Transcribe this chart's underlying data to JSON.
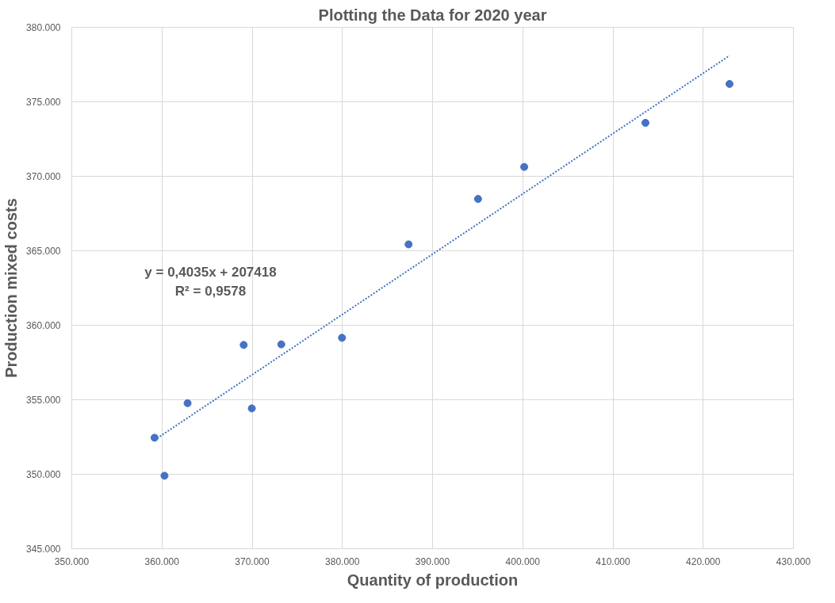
{
  "chart_data": {
    "type": "scatter",
    "title": "Plotting the Data for 2020 year",
    "xlabel": "Quantity of production",
    "ylabel": "Production mixed costs",
    "annotations": [
      "y = 0,4035x + 207418",
      "R² = 0,9578"
    ],
    "x": [
      359180,
      360280,
      362840,
      369060,
      369960,
      373230,
      379960,
      387340,
      395040,
      400160,
      413600,
      422920
    ],
    "series": [
      {
        "color": "#4472c4",
        "marker": "circle",
        "values": [
          352450,
          349900,
          354770,
          358680,
          354420,
          358720,
          359160,
          365430,
          368480,
          370630,
          373590,
          376200
        ]
      },
      {
        "type": "line",
        "color": "#4472c4",
        "line_style": "dotted",
        "marker": "none",
        "x": [
          359180,
          422920
        ],
        "values": [
          352300,
          378100
        ]
      }
    ],
    "xlim": [
      350000,
      430000
    ],
    "ylim": [
      345000,
      380000
    ],
    "xticks": [
      {
        "value": 350000,
        "label": "350.000"
      },
      {
        "value": 360000,
        "label": "360.000"
      },
      {
        "value": 370000,
        "label": "370.000"
      },
      {
        "value": 380000,
        "label": "380.000"
      },
      {
        "value": 390000,
        "label": "390.000"
      },
      {
        "value": 400000,
        "label": "400.000"
      },
      {
        "value": 410000,
        "label": "410.000"
      },
      {
        "value": 420000,
        "label": "420.000"
      },
      {
        "value": 430000,
        "label": "430.000"
      }
    ],
    "yticks": [
      {
        "value": 345000,
        "label": "345.000"
      },
      {
        "value": 350000,
        "label": "350.000"
      },
      {
        "value": 355000,
        "label": "355.000"
      },
      {
        "value": 360000,
        "label": "360.000"
      },
      {
        "value": 365000,
        "label": "365.000"
      },
      {
        "value": 370000,
        "label": "370.000"
      },
      {
        "value": 375000,
        "label": "375.000"
      },
      {
        "value": 380000,
        "label": "380.000"
      }
    ],
    "grid": true
  }
}
